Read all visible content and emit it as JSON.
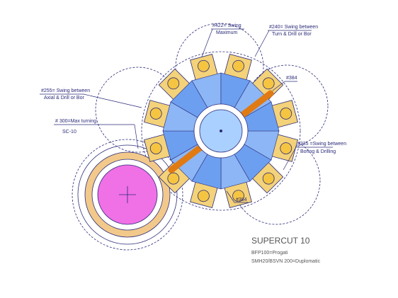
{
  "labels": {
    "swing_max": [
      "#422= Swing",
      "Maximum"
    ],
    "swing_turn": [
      "#240= Swing between",
      "Turn & Drill or Bor"
    ],
    "dim_top": "#384",
    "swing_axial": [
      "#255= Swing between",
      "Axial & Drill or Bor"
    ],
    "max_turning": [
      "# 300=Max turning",
      "SC-10"
    ],
    "swing_boring": [
      "#335 =Swing between",
      "Boring & Drilling"
    ],
    "dim_bottom": "#384"
  },
  "title_block": {
    "title": "SUPERCUT 10",
    "lines": [
      "BFP100=Progati",
      "SMH20/BSVN 200=Duplomatic"
    ]
  }
}
